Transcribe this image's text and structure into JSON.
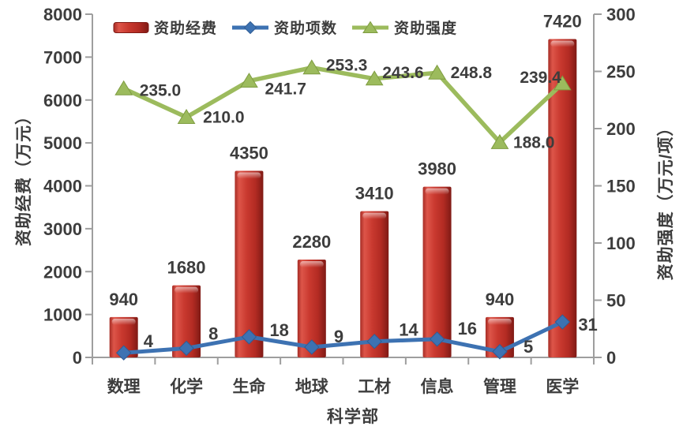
{
  "chart_data": {
    "type": "bar",
    "combo": "bar-line-dual-axis",
    "categories": [
      "数理",
      "化学",
      "生命",
      "地球",
      "工材",
      "信息",
      "管理",
      "医学"
    ],
    "x_axis": {
      "title": "科学部"
    },
    "left_axis": {
      "title": "资助经费（万元）",
      "min": 0,
      "max": 8000,
      "step": 1000
    },
    "right_axis": {
      "title": "资助强度（万元/项）",
      "min": 0,
      "max": 300,
      "step": 50
    },
    "grid": "off",
    "legend_position": "top",
    "series": [
      {
        "name": "资助经费",
        "type": "bar",
        "axis": "left",
        "color": "#c9392f",
        "values": [
          940,
          1680,
          4350,
          2280,
          3410,
          3980,
          940,
          7420
        ],
        "labels": [
          "940",
          "1680",
          "4350",
          "2280",
          "3410",
          "3980",
          "940",
          "7420"
        ]
      },
      {
        "name": "资助项数",
        "type": "line",
        "marker": "diamond",
        "axis": "right",
        "color": "#3d72b2",
        "values": [
          4,
          8,
          18,
          9,
          14,
          16,
          5,
          31
        ],
        "labels": [
          "4",
          "8",
          "18",
          "9",
          "14",
          "16",
          "5",
          "31"
        ]
      },
      {
        "name": "资助强度",
        "type": "line",
        "marker": "triangle",
        "axis": "right",
        "color": "#9cbb5d",
        "values": [
          235.0,
          210.0,
          241.7,
          253.3,
          243.6,
          248.8,
          188.0,
          239.4
        ],
        "labels": [
          "235.0",
          "210.0",
          "241.7",
          "253.3",
          "243.6",
          "248.8",
          "188.0",
          "239.4"
        ]
      }
    ],
    "legend": {
      "items": [
        "资助经费",
        "资助项数",
        "资助强度"
      ]
    },
    "colors": {
      "bar_main": "#c9392f",
      "bar_main2": "#b32b23",
      "bar_light": "#dd5549",
      "bar_edge": "#a62c25",
      "bar_dark": "#7f1a15",
      "line_blue": "#3d72b2",
      "blue_dark": "#2f5c95",
      "line_green": "#9cbb5d",
      "green_dark": "#7e9c40",
      "text": "#3d3d3d",
      "axis": "#9e9e9e"
    }
  }
}
